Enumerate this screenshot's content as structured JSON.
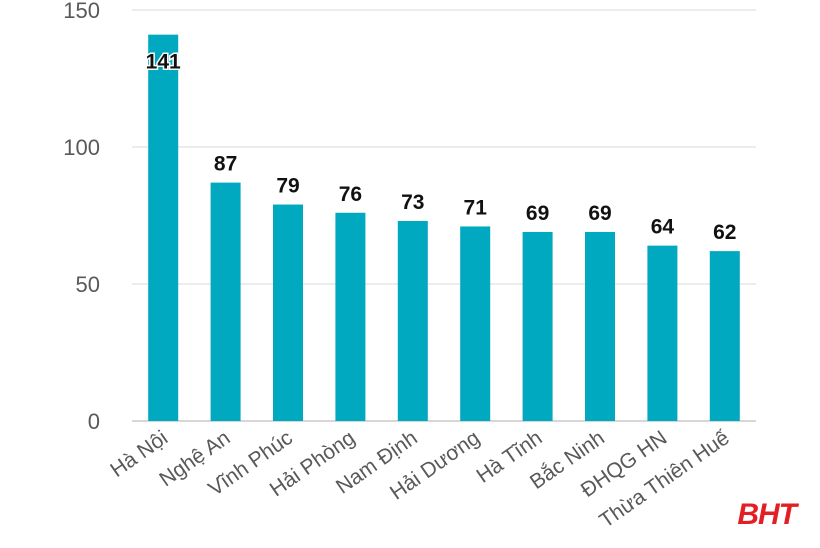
{
  "chart_data": {
    "type": "bar",
    "categories": [
      "Hà Nội",
      "Nghệ An",
      "Vĩnh Phúc",
      "Hải Phòng",
      "Nam Định",
      "Hải Dương",
      "Hà Tĩnh",
      "Bắc Ninh",
      "ĐHQG HN",
      "Thừa Thiên Huế"
    ],
    "values": [
      141,
      87,
      79,
      76,
      73,
      71,
      69,
      69,
      64,
      62
    ],
    "title": "",
    "xlabel": "",
    "ylabel": "",
    "ylim": [
      0,
      150
    ],
    "yticks": [
      0,
      50,
      100,
      150
    ],
    "grid": true,
    "bar_color": "#00a9bf"
  },
  "watermark": "BHT"
}
